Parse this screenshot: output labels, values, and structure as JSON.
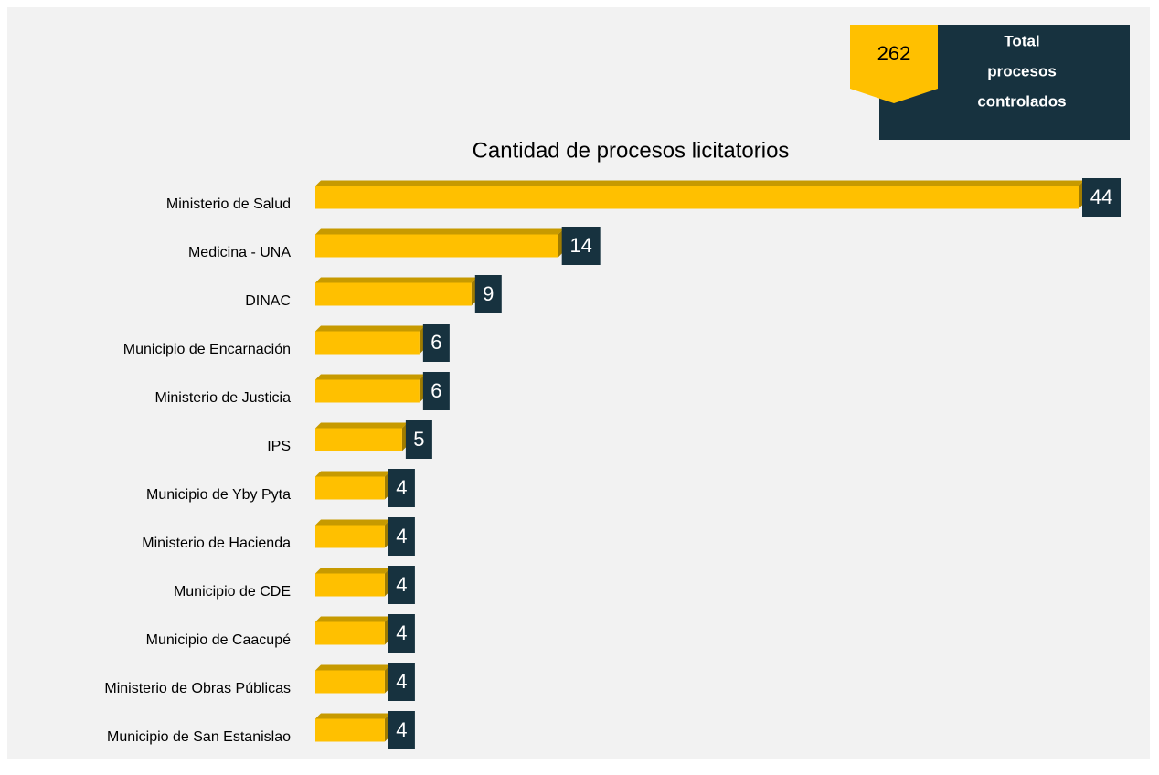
{
  "chart_data": {
    "type": "bar",
    "orientation": "horizontal",
    "title": "Cantidad de procesos licitatorios",
    "categories": [
      "Ministerio de Salud",
      "Medicina - UNA",
      "DINAC",
      "Municipio de Encarnación",
      "Ministerio de Justicia",
      "IPS",
      "Municipio de Yby Pyta",
      "Ministerio de Hacienda",
      "Municipio de CDE",
      "Municipio de Caacupé",
      "Ministerio de Obras Públicas",
      "Municipio de San Estanislao"
    ],
    "values": [
      44,
      14,
      9,
      6,
      6,
      5,
      4,
      4,
      4,
      4,
      4,
      4
    ],
    "color": "#ffc000",
    "label_color": "#17323f"
  },
  "badge": {
    "value": 262,
    "label": [
      "Total",
      "procesos",
      "controlados"
    ]
  }
}
